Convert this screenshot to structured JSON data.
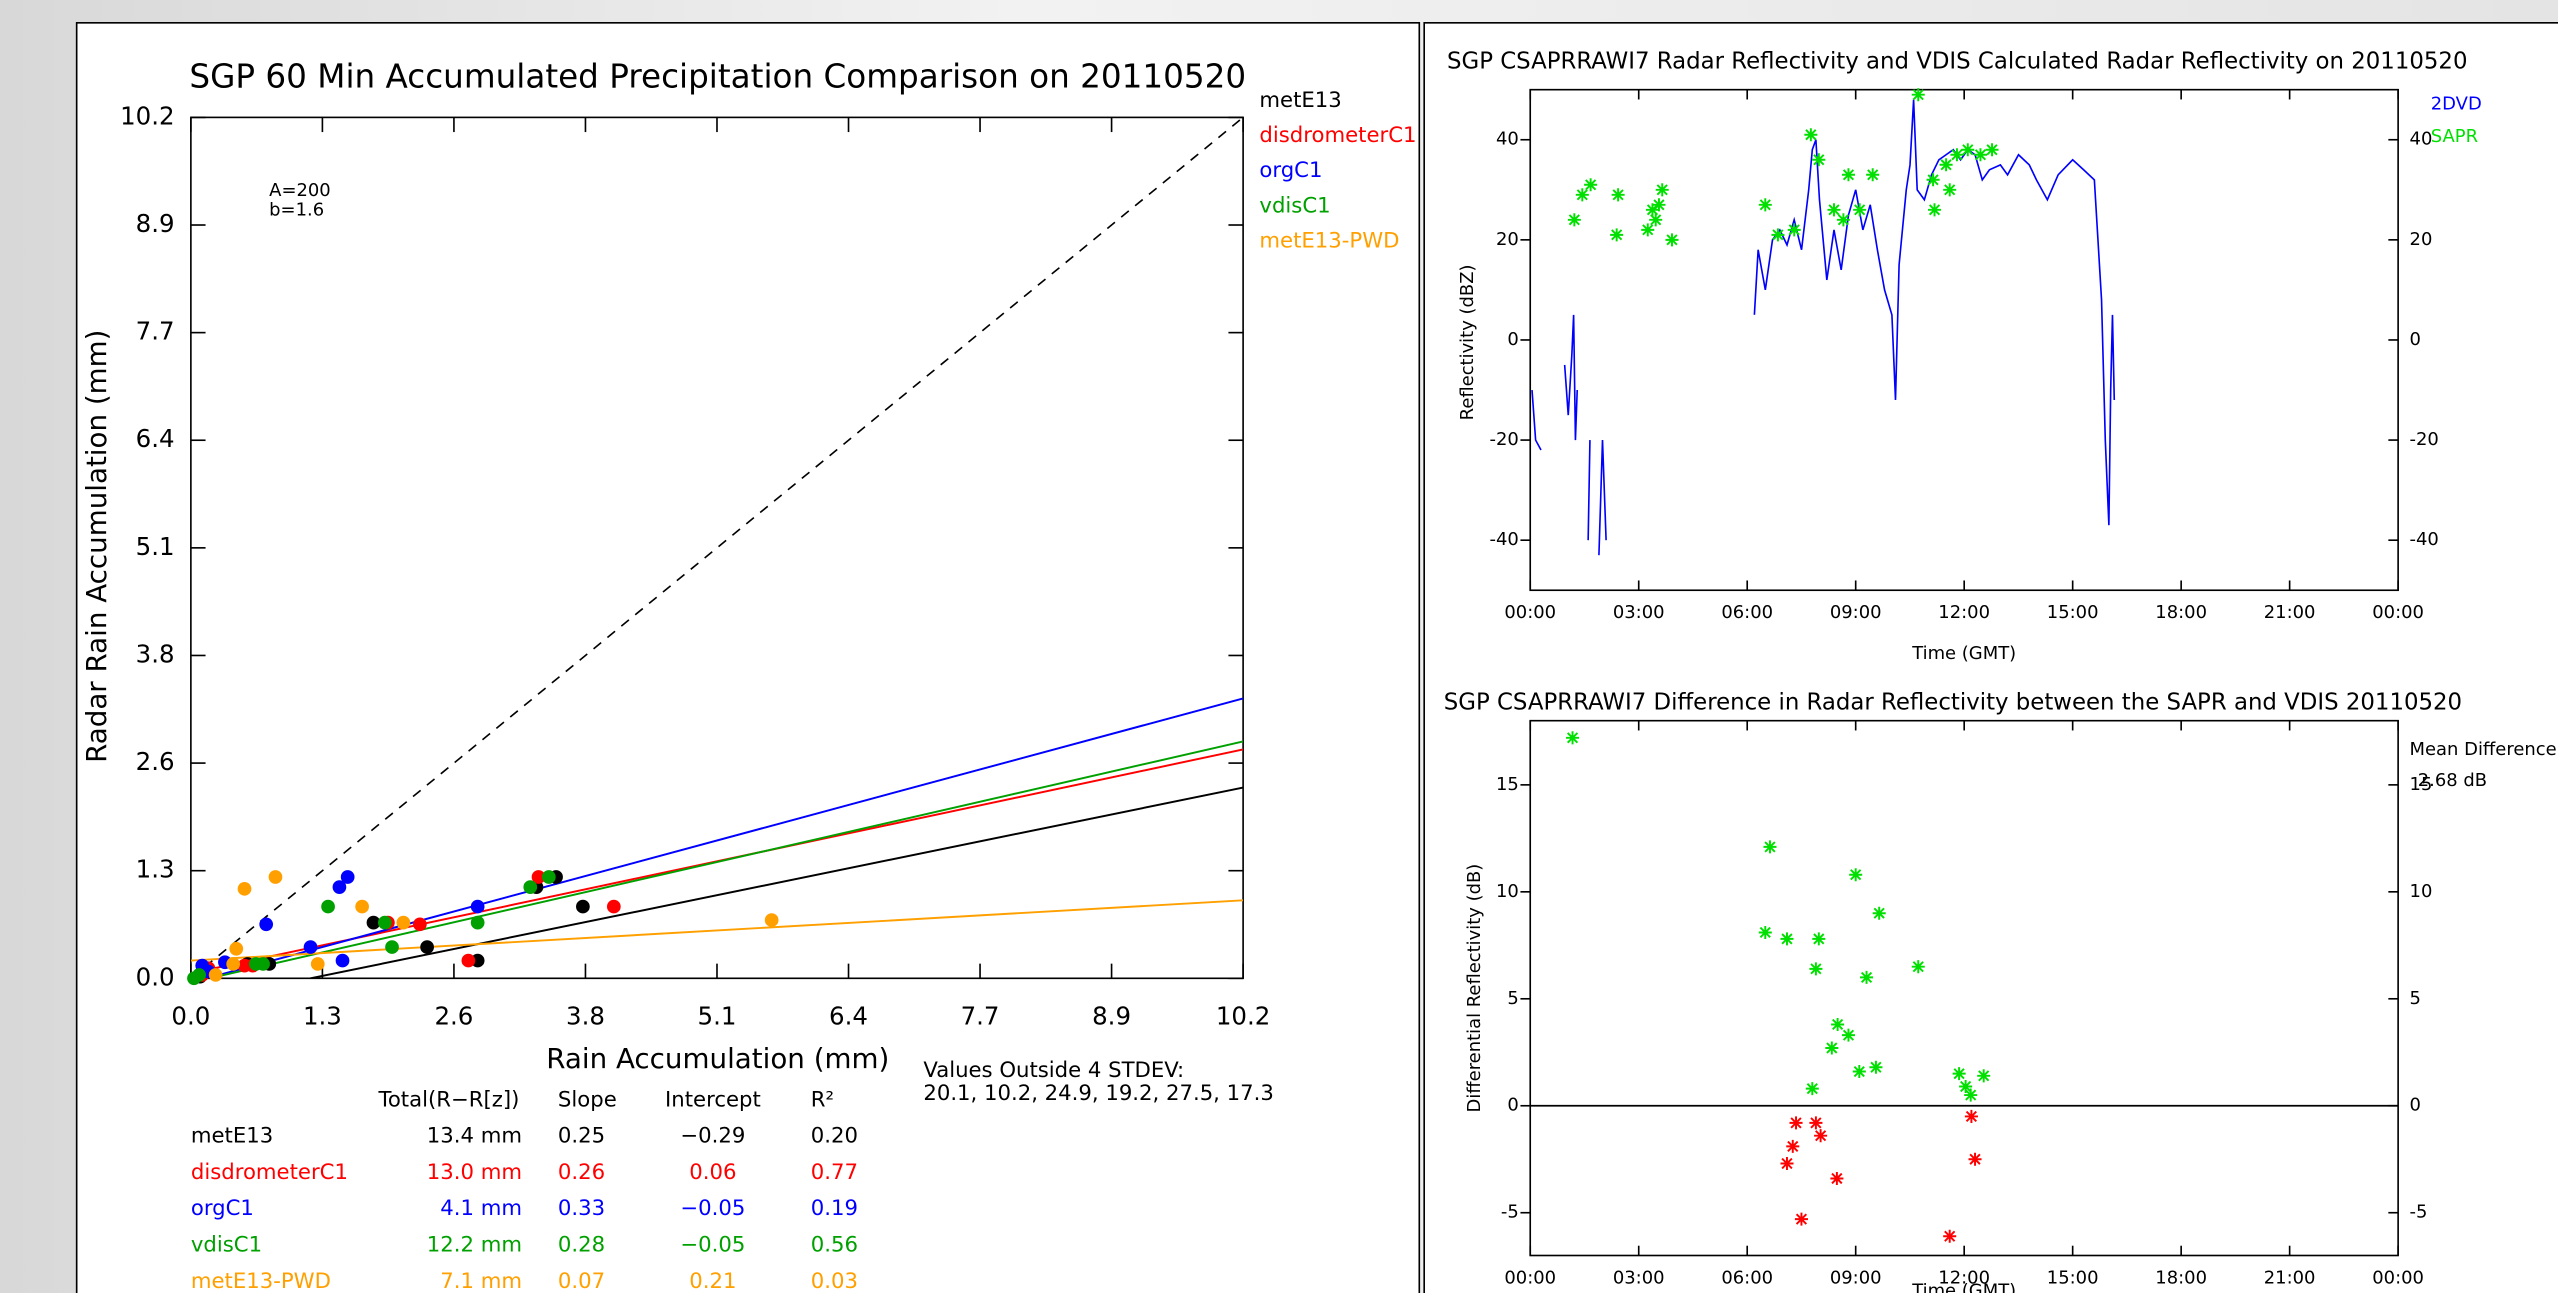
{
  "chart_data": [
    {
      "type": "scatter",
      "title": "SGP 60 Min Accumulated Precipitation Comparison on 20110520",
      "xlabel": "Rain Accumulation (mm)",
      "ylabel": "Radar Rain Accumulation (mm)",
      "xlim": [
        0,
        10.2
      ],
      "ylim": [
        0,
        10.2
      ],
      "xticks": [
        {
          "value": 0,
          "label": "0.0"
        },
        {
          "value": 1.275,
          "label": "1.3"
        },
        {
          "value": 2.55,
          "label": "2.6"
        },
        {
          "value": 3.825,
          "label": "3.8"
        },
        {
          "value": 5.1,
          "label": "5.1"
        },
        {
          "value": 6.375,
          "label": "6.4"
        },
        {
          "value": 7.65,
          "label": "7.7"
        },
        {
          "value": 8.925,
          "label": "8.9"
        },
        {
          "value": 10.2,
          "label": "10.2"
        }
      ],
      "yticks": [
        {
          "value": 0,
          "label": "0.0"
        },
        {
          "value": 1.275,
          "label": "1.3"
        },
        {
          "value": 2.55,
          "label": "2.6"
        },
        {
          "value": 3.825,
          "label": "3.8"
        },
        {
          "value": 5.1,
          "label": "5.1"
        },
        {
          "value": 6.375,
          "label": "6.4"
        },
        {
          "value": 7.65,
          "label": "7.7"
        },
        {
          "value": 8.925,
          "label": "8.9"
        },
        {
          "value": 10.2,
          "label": "10.2"
        }
      ],
      "annotations": [
        "A=200",
        "b=1.6"
      ],
      "table_columns": [
        "Total(R−R[z])",
        "Slope",
        "Intercept",
        "R²"
      ],
      "note": "Values Outside 4 STDEV:",
      "note_values": "20.1, 10.2, 24.9, 19.2, 27.5, 17.3",
      "series": [
        {
          "name": "metE13",
          "color": "#000000",
          "marker": "circle",
          "x": [
            0.09,
            0.55,
            0.76,
            1.77,
            2.29,
            2.78,
            3.35,
            3.54,
            3.8
          ],
          "values": [
            0.02,
            0.17,
            0.17,
            0.66,
            0.37,
            0.21,
            1.08,
            1.2,
            0.85
          ],
          "total": "13.4 mm",
          "fit": {
            "slope": 0.25,
            "intercept": -0.29
          },
          "fit_labels": [
            "0.25",
            "−0.29",
            "0.20"
          ]
        },
        {
          "name": "disdrometerC1",
          "color": "#ff0000",
          "marker": "circle",
          "x": [
            0.11,
            0.17,
            0.52,
            0.6,
            1.91,
            2.22,
            2.69,
            3.37,
            4.1
          ],
          "values": [
            0.04,
            0.12,
            0.15,
            0.15,
            0.66,
            0.64,
            0.21,
            1.2,
            0.85
          ],
          "total": "13.0 mm",
          "fit": {
            "slope": 0.26,
            "intercept": 0.06
          },
          "fit_labels": [
            "0.26",
            "0.06",
            "0.77"
          ]
        },
        {
          "name": "orgC1",
          "color": "#0000ff",
          "marker": "circle",
          "x": [
            0.11,
            0.17,
            0.33,
            0.73,
            1.16,
            1.44,
            1.47,
            1.52,
            2.78
          ],
          "values": [
            0.15,
            0.08,
            0.19,
            0.64,
            0.37,
            1.08,
            0.21,
            1.2,
            0.85
          ],
          "total": "4.1 mm",
          "fit": {
            "slope": 0.33,
            "intercept": -0.05
          },
          "fit_labels": [
            "0.33",
            "−0.05",
            "0.19"
          ]
        },
        {
          "name": "vdisC1",
          "color": "#00a000",
          "marker": "circle",
          "x": [
            0.03,
            0.08,
            0.63,
            0.7,
            1.33,
            1.88,
            1.95,
            2.78,
            3.29,
            3.47
          ],
          "values": [
            0,
            0.04,
            0.17,
            0.17,
            0.85,
            0.66,
            0.37,
            0.66,
            1.08,
            1.2
          ],
          "total": "12.2 mm",
          "fit": {
            "slope": 0.28,
            "intercept": -0.05
          },
          "fit_labels": [
            "0.28",
            "−0.05",
            "0.56"
          ]
        },
        {
          "name": "metE13-PWD",
          "color": "#ffa000",
          "marker": "circle",
          "x": [
            0.24,
            0.41,
            0.44,
            0.52,
            0.82,
            1.23,
            1.66,
            2.06,
            5.63
          ],
          "values": [
            0.04,
            0.17,
            0.35,
            1.06,
            1.2,
            0.17,
            0.85,
            0.66,
            0.69
          ],
          "total": "7.1 mm",
          "fit": {
            "slope": 0.07,
            "intercept": 0.21
          },
          "fit_labels": [
            "0.07",
            "0.21",
            "0.03"
          ]
        }
      ]
    },
    {
      "type": "line",
      "title": "SGP CSAPRRAWI7 Radar Reflectivity and VDIS Calculated Radar Reflectivity on 20110520",
      "xlabel": "Time (GMT)",
      "ylabel": "Reflectivity (dBZ)",
      "xlim": [
        0,
        24
      ],
      "ylim": [
        -50,
        50
      ],
      "y2lim": [
        -50,
        50
      ],
      "xticks": [
        {
          "value": 0,
          "label": "00:00"
        },
        {
          "value": 3,
          "label": "03:00"
        },
        {
          "value": 6,
          "label": "06:00"
        },
        {
          "value": 9,
          "label": "09:00"
        },
        {
          "value": 12,
          "label": "12:00"
        },
        {
          "value": 15,
          "label": "15:00"
        },
        {
          "value": 18,
          "label": "18:00"
        },
        {
          "value": 21,
          "label": "21:00"
        },
        {
          "value": 24,
          "label": "00:00"
        }
      ],
      "yticks": [
        -40,
        -20,
        0,
        20,
        40
      ],
      "y2ticks": [
        -40,
        -20,
        0,
        20,
        40
      ],
      "series": [
        {
          "name": "2DVD",
          "color": "#0000ff",
          "line": true,
          "x": [
            0.05,
            0.15,
            0.3,
            0.6,
            0.95,
            1.05,
            1.15,
            1.2,
            1.25,
            1.3,
            1.45,
            1.6,
            1.65,
            1.8,
            1.9,
            2.0,
            2.1,
            4.0,
            6.2,
            6.3,
            6.5,
            6.7,
            6.9,
            7.1,
            7.3,
            7.5,
            7.7,
            7.8,
            7.9,
            8.0,
            8.2,
            8.4,
            8.6,
            8.8,
            9.0,
            9.2,
            9.4,
            9.6,
            9.8,
            10.0,
            10.1,
            10.2,
            10.4,
            10.5,
            10.6,
            10.7,
            10.9,
            11.1,
            11.3,
            11.5,
            11.7,
            11.9,
            12.1,
            12.3,
            12.5,
            12.7,
            13.0,
            13.2,
            13.5,
            13.8,
            14.0,
            14.3,
            14.6,
            15.0,
            15.3,
            15.6,
            15.8,
            15.9,
            16.0,
            16.05,
            16.1,
            16.15
          ],
          "values": [
            -10,
            -20,
            -22,
            null,
            -5,
            -15,
            -3,
            5,
            -20,
            -10,
            null,
            -40,
            -20,
            null,
            -43,
            -20,
            -40,
            null,
            5,
            18,
            10,
            20,
            22,
            19,
            24,
            18,
            30,
            38,
            40,
            28,
            12,
            22,
            14,
            25,
            30,
            22,
            27,
            18,
            10,
            5,
            -12,
            15,
            30,
            35,
            48,
            30,
            28,
            33,
            36,
            37,
            38,
            36,
            38,
            37,
            32,
            34,
            35,
            33,
            37,
            35,
            32,
            28,
            33,
            36,
            34,
            32,
            8,
            -20,
            -37,
            -10,
            5,
            -12
          ]
        },
        {
          "name": "SAPR",
          "color": "#00e000",
          "marker": "star",
          "x": [
            1.22,
            1.44,
            1.67,
            2.39,
            2.43,
            3.25,
            3.38,
            3.47,
            3.56,
            3.65,
            3.92,
            6.5,
            6.85,
            7.3,
            7.76,
            7.98,
            8.4,
            8.66,
            8.8,
            9.11,
            9.47,
            10.73,
            11.14,
            11.18,
            11.5,
            11.6,
            11.8,
            12.1,
            12.45,
            12.77
          ],
          "values": [
            24,
            29,
            31,
            21,
            29,
            22,
            26,
            24,
            27,
            30,
            20,
            27,
            21,
            22,
            41,
            36,
            26,
            24,
            33,
            26,
            33,
            49,
            32,
            26,
            35,
            30,
            37,
            38,
            37,
            38
          ]
        }
      ]
    },
    {
      "type": "scatter",
      "title": "SGP CSAPRRAWI7 Difference in Radar Reflectivity between the SAPR and VDIS  20110520",
      "xlabel": "Time (GMT)",
      "ylabel": "Differential Reflectivity (dB)",
      "xlim": [
        0,
        24
      ],
      "ylim": [
        -7,
        18
      ],
      "y2lim": [
        -7,
        18
      ],
      "xticks": [
        {
          "value": 0,
          "label": "00:00"
        },
        {
          "value": 3,
          "label": "03:00"
        },
        {
          "value": 6,
          "label": "06:00"
        },
        {
          "value": 9,
          "label": "09:00"
        },
        {
          "value": 12,
          "label": "12:00"
        },
        {
          "value": 15,
          "label": "15:00"
        },
        {
          "value": 18,
          "label": "18:00"
        },
        {
          "value": 21,
          "label": "21:00"
        },
        {
          "value": 24,
          "label": "00:00"
        }
      ],
      "yticks": [
        -5,
        0,
        5,
        10,
        15
      ],
      "y2ticks": [
        -5,
        0,
        5,
        10,
        15
      ],
      "hline": 0,
      "annotations": [
        "Mean Difference",
        "2.68 dB"
      ],
      "series": [
        {
          "color": "#00e000",
          "marker": "star",
          "x": [
            1.17,
            6.5,
            6.63,
            7.1,
            7.8,
            7.9,
            7.98,
            8.34,
            8.5,
            8.8,
            9.0,
            9.1,
            9.3,
            9.56,
            9.65,
            10.73,
            11.86,
            12.04,
            12.18,
            12.54
          ],
          "values": [
            17.2,
            8.1,
            12.1,
            7.8,
            0.8,
            6.4,
            7.8,
            2.7,
            3.8,
            3.3,
            10.8,
            1.6,
            6.0,
            1.8,
            9.0,
            6.5,
            1.5,
            0.9,
            0.5,
            1.4
          ]
        },
        {
          "color": "#ff0000",
          "marker": "star",
          "x": [
            7.1,
            7.26,
            7.35,
            7.5,
            7.9,
            8.03,
            8.48,
            11.6,
            12.2,
            12.3
          ],
          "values": [
            -2.7,
            -1.9,
            -0.8,
            -5.3,
            -0.8,
            -1.4,
            -3.4,
            -6.1,
            -0.5,
            -2.5
          ]
        }
      ]
    }
  ]
}
